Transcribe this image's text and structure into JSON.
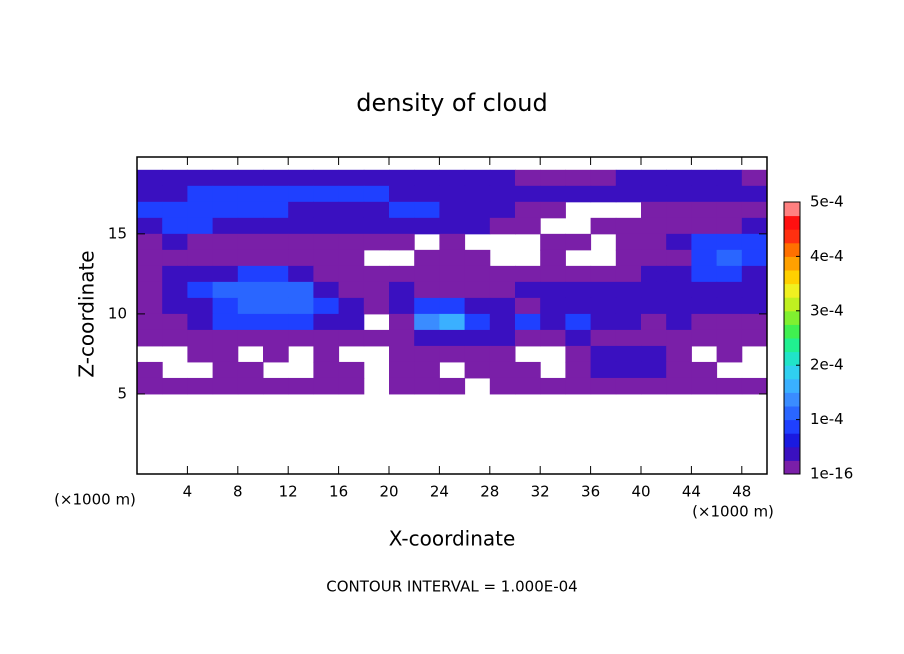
{
  "chart_data": {
    "type": "heatmap",
    "title": "density of cloud",
    "x_label": "X-coordinate",
    "y_label": "Z-coordinate",
    "x_unit_left": "(×1000 m)",
    "x_unit_right": "(×1000 m)",
    "note": "CONTOUR INTERVAL = 1.000E-04",
    "xlim": [
      0,
      50
    ],
    "xticks": [
      4,
      8,
      12,
      16,
      20,
      24,
      28,
      32,
      36,
      40,
      44,
      48
    ],
    "ylim": [
      0,
      19.8
    ],
    "yticks": [
      5,
      10,
      15
    ],
    "x": [
      1,
      3,
      5,
      7,
      9,
      11,
      13,
      15,
      17,
      19,
      21,
      23,
      25,
      27,
      29,
      31,
      33,
      35,
      37,
      39,
      41,
      43,
      45,
      47,
      49
    ],
    "y": [
      18.5,
      17.5,
      16.5,
      15.5,
      14.5,
      13.5,
      12.5,
      11.5,
      10.5,
      9.5,
      8.5,
      7.5,
      6.5,
      5.5
    ],
    "z": [
      [
        3e-05,
        3e-05,
        5e-05,
        5e-05,
        5e-05,
        5e-05,
        5e-05,
        5e-05,
        5e-05,
        5e-05,
        3e-05,
        3e-05,
        3e-05,
        3e-05,
        3e-05,
        1e-05,
        1e-05,
        1e-05,
        1e-05,
        3e-05,
        5e-05,
        5e-05,
        3e-05,
        3e-05,
        1e-05
      ],
      [
        5e-05,
        5e-05,
        8e-05,
        8e-05,
        8e-05,
        8e-05,
        8e-05,
        8e-05,
        8e-05,
        8e-05,
        5e-05,
        5e-05,
        5e-05,
        5e-05,
        3e-05,
        3e-05,
        3e-05,
        3e-05,
        3e-05,
        3e-05,
        5e-05,
        5e-05,
        3e-05,
        3e-05,
        3e-05
      ],
      [
        8e-05,
        8e-05,
        8e-05,
        8e-05,
        8e-05,
        8e-05,
        5e-05,
        5e-05,
        5e-05,
        5e-05,
        8e-05,
        8e-05,
        5e-05,
        5e-05,
        3e-05,
        1e-05,
        1e-05,
        null,
        null,
        null,
        1e-05,
        1e-05,
        1e-05,
        1e-05,
        1e-05
      ],
      [
        3e-05,
        8e-05,
        8e-05,
        3e-05,
        3e-05,
        3e-05,
        3e-05,
        3e-05,
        5e-05,
        5e-05,
        5e-05,
        5e-05,
        3e-05,
        3e-05,
        1e-05,
        1e-05,
        null,
        null,
        1e-05,
        1e-05,
        1e-05,
        1e-05,
        1e-05,
        1e-05,
        5e-05
      ],
      [
        1e-05,
        3e-05,
        1e-05,
        1e-05,
        1e-05,
        1e-05,
        1e-05,
        1e-05,
        1e-05,
        1e-05,
        1e-05,
        null,
        1e-05,
        null,
        null,
        null,
        1e-05,
        1e-05,
        null,
        1e-05,
        1e-05,
        5e-05,
        8e-05,
        8e-05,
        8e-05
      ],
      [
        1e-05,
        1e-05,
        1e-05,
        1e-05,
        1e-05,
        1e-05,
        1e-05,
        1e-05,
        1e-05,
        null,
        null,
        1e-05,
        1e-05,
        1e-05,
        null,
        null,
        1e-05,
        null,
        null,
        1e-05,
        1e-05,
        1e-05,
        8e-05,
        0.00011,
        8e-05
      ],
      [
        1e-05,
        3e-05,
        5e-05,
        5e-05,
        8e-05,
        8e-05,
        3e-05,
        1e-05,
        1e-05,
        1e-05,
        1e-05,
        1e-05,
        1e-05,
        1e-05,
        1e-05,
        1e-05,
        1e-05,
        1e-05,
        1e-05,
        1e-05,
        3e-05,
        3e-05,
        8e-05,
        8e-05,
        5e-05
      ],
      [
        1e-05,
        3e-05,
        8e-05,
        0.00011,
        0.00011,
        0.00011,
        0.00011,
        3e-05,
        1e-05,
        1e-05,
        3e-05,
        1e-05,
        1e-05,
        1e-05,
        1e-05,
        3e-05,
        3e-05,
        3e-05,
        3e-05,
        3e-05,
        3e-05,
        3e-05,
        5e-05,
        3e-05,
        5e-05
      ],
      [
        1e-05,
        3e-05,
        5e-05,
        8e-05,
        0.00011,
        0.00011,
        0.00011,
        8e-05,
        3e-05,
        1e-05,
        3e-05,
        8e-05,
        8e-05,
        3e-05,
        3e-05,
        1e-05,
        3e-05,
        5e-05,
        5e-05,
        3e-05,
        5e-05,
        3e-05,
        5e-05,
        3e-05,
        3e-05
      ],
      [
        1e-05,
        1e-05,
        3e-05,
        8e-05,
        8e-05,
        8e-05,
        8e-05,
        5e-05,
        3e-05,
        null,
        1e-05,
        0.00014,
        0.00016,
        8e-05,
        5e-05,
        8e-05,
        5e-05,
        8e-05,
        3e-05,
        3e-05,
        1e-05,
        3e-05,
        1e-05,
        1e-05,
        1e-05
      ],
      [
        1e-05,
        1e-05,
        1e-05,
        1e-05,
        1e-05,
        1e-05,
        1e-05,
        1e-05,
        1e-05,
        1e-05,
        1e-05,
        3e-05,
        3e-05,
        3e-05,
        3e-05,
        1e-05,
        1e-05,
        3e-05,
        1e-05,
        1e-05,
        1e-05,
        1e-05,
        1e-05,
        1e-05,
        1e-05
      ],
      [
        null,
        null,
        1e-05,
        1e-05,
        null,
        1e-05,
        null,
        1e-05,
        null,
        null,
        1e-05,
        1e-05,
        1e-05,
        1e-05,
        1e-05,
        null,
        null,
        1e-05,
        3e-05,
        3e-05,
        3e-05,
        1e-05,
        null,
        1e-05,
        null
      ],
      [
        1e-05,
        null,
        null,
        1e-05,
        1e-05,
        null,
        null,
        1e-05,
        1e-05,
        null,
        1e-05,
        1e-05,
        null,
        1e-05,
        1e-05,
        1e-05,
        null,
        1e-05,
        5e-05,
        5e-05,
        3e-05,
        1e-05,
        1e-05,
        null,
        null
      ],
      [
        1e-05,
        1e-05,
        1e-05,
        1e-05,
        1e-05,
        1e-05,
        1e-05,
        1e-05,
        1e-05,
        null,
        1e-05,
        1e-05,
        1e-05,
        null,
        1e-05,
        1e-05,
        1e-05,
        1e-05,
        1e-05,
        1e-05,
        1e-05,
        1e-05,
        1e-05,
        1e-05,
        1e-05
      ]
    ],
    "clim": [
      1e-16,
      0.0005
    ],
    "colors": [
      "#7a1fa8",
      "#3a10c0",
      "#1a1ae0",
      "#1f40ff",
      "#2a66ff",
      "#3a8cff",
      "#3ab0ff",
      "#30d0f0",
      "#20e4c8",
      "#20f090",
      "#40f050",
      "#80f030",
      "#c0f020",
      "#f0f020",
      "#ffd000",
      "#ffa000",
      "#ff7000",
      "#ff3010",
      "#ff1010",
      "#ff8080"
    ],
    "cticks": [
      {
        "value": 1e-16,
        "label": "1e-16"
      },
      {
        "value": 0.0001,
        "label": "1e-4"
      },
      {
        "value": 0.0002,
        "label": "2e-4"
      },
      {
        "value": 0.0003,
        "label": "3e-4"
      },
      {
        "value": 0.0004,
        "label": "4e-4"
      },
      {
        "value": 0.0005,
        "label": "5e-4"
      }
    ]
  }
}
